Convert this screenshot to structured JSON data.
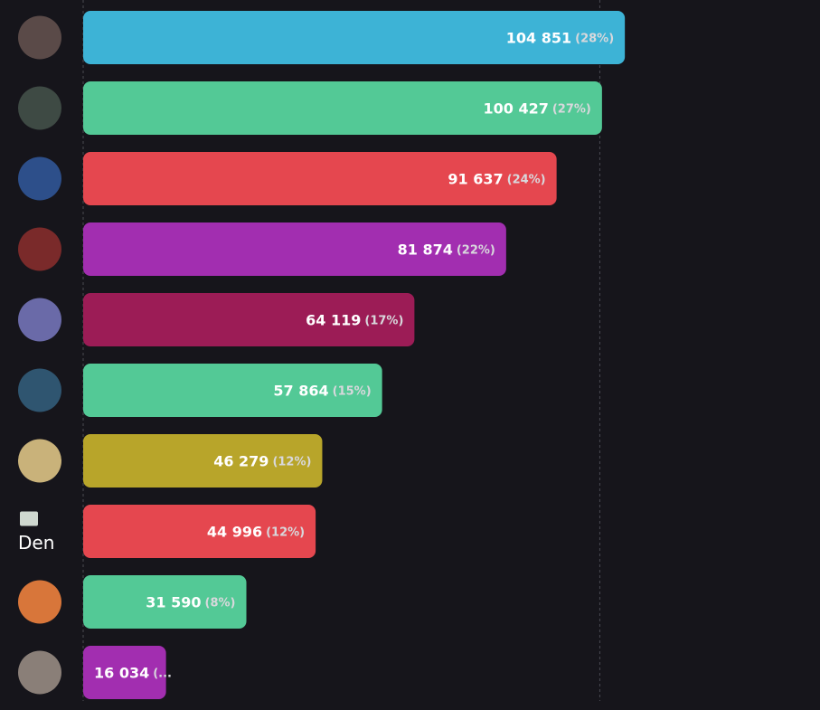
{
  "chart_data": {
    "type": "bar",
    "orientation": "horizontal",
    "categories": [
      null,
      null,
      null,
      null,
      null,
      null,
      null,
      "Den",
      null,
      null
    ],
    "values": [
      104851,
      100427,
      91637,
      81874,
      64119,
      57864,
      46279,
      44996,
      31590,
      16034
    ],
    "value_labels": [
      "104 851",
      "100 427",
      "91 637",
      "81 874",
      "64 119",
      "57 864",
      "46 279",
      "44 996",
      "31 590",
      "16 034"
    ],
    "percent_labels": [
      "(28%)",
      "(27%)",
      "(24%)",
      "(22%)",
      "(17%)",
      "(15%)",
      "(12%)",
      "(12%)",
      "(8%)",
      "(..."
    ],
    "colors": [
      "#3db3d6",
      "#53c996",
      "#e5474f",
      "#a22eb0",
      "#9c1c56",
      "#53c996",
      "#b8a52a",
      "#e5474f",
      "#53c996",
      "#a22eb0"
    ],
    "xlim": [
      0,
      105000
    ],
    "xticks": [
      0,
      100000
    ],
    "grid": true
  }
}
